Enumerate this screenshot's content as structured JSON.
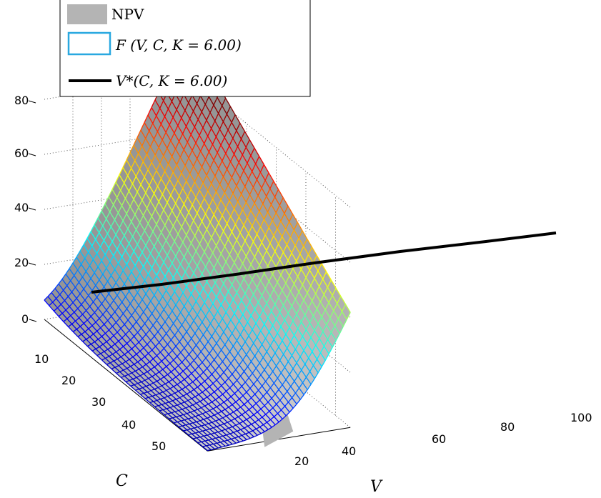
{
  "chart_data": {
    "type": "surface-3d",
    "title": "",
    "xlabel": "V",
    "ylabel": "C",
    "zlabel": "",
    "xlim": [
      0,
      100
    ],
    "ylim": [
      0,
      55
    ],
    "zlim": [
      0,
      80
    ],
    "x_ticks": [
      "20",
      "40",
      "60",
      "80",
      "100"
    ],
    "y_ticks": [
      "10",
      "20",
      "30",
      "40",
      "50"
    ],
    "z_ticks": [
      "0",
      "20",
      "40",
      "60",
      "80"
    ],
    "grid": true,
    "legend_placement": "top-left",
    "legend": [
      {
        "label": "NPV",
        "style": "gray filled surface"
      },
      {
        "label": "F (V, C, K = 6.00)",
        "style": "jet-colored mesh"
      },
      {
        "label": "V*(C, K = 6.00)",
        "style": "black line"
      }
    ],
    "series": [
      {
        "name": "NPV",
        "kind": "surface",
        "formula": "V - C - K",
        "K": 6.0,
        "color": "#b4b4b4"
      },
      {
        "name": "F (V, C, K = 6.00)",
        "kind": "mesh",
        "colormap": "jet"
      },
      {
        "name": "V*(C, K = 6.00)",
        "kind": "line",
        "color": "#000000",
        "points": [
          {
            "C": 55,
            "V": 14,
            "F": 8
          },
          {
            "C": 0,
            "V": 104,
            "F": 20
          }
        ]
      }
    ]
  }
}
